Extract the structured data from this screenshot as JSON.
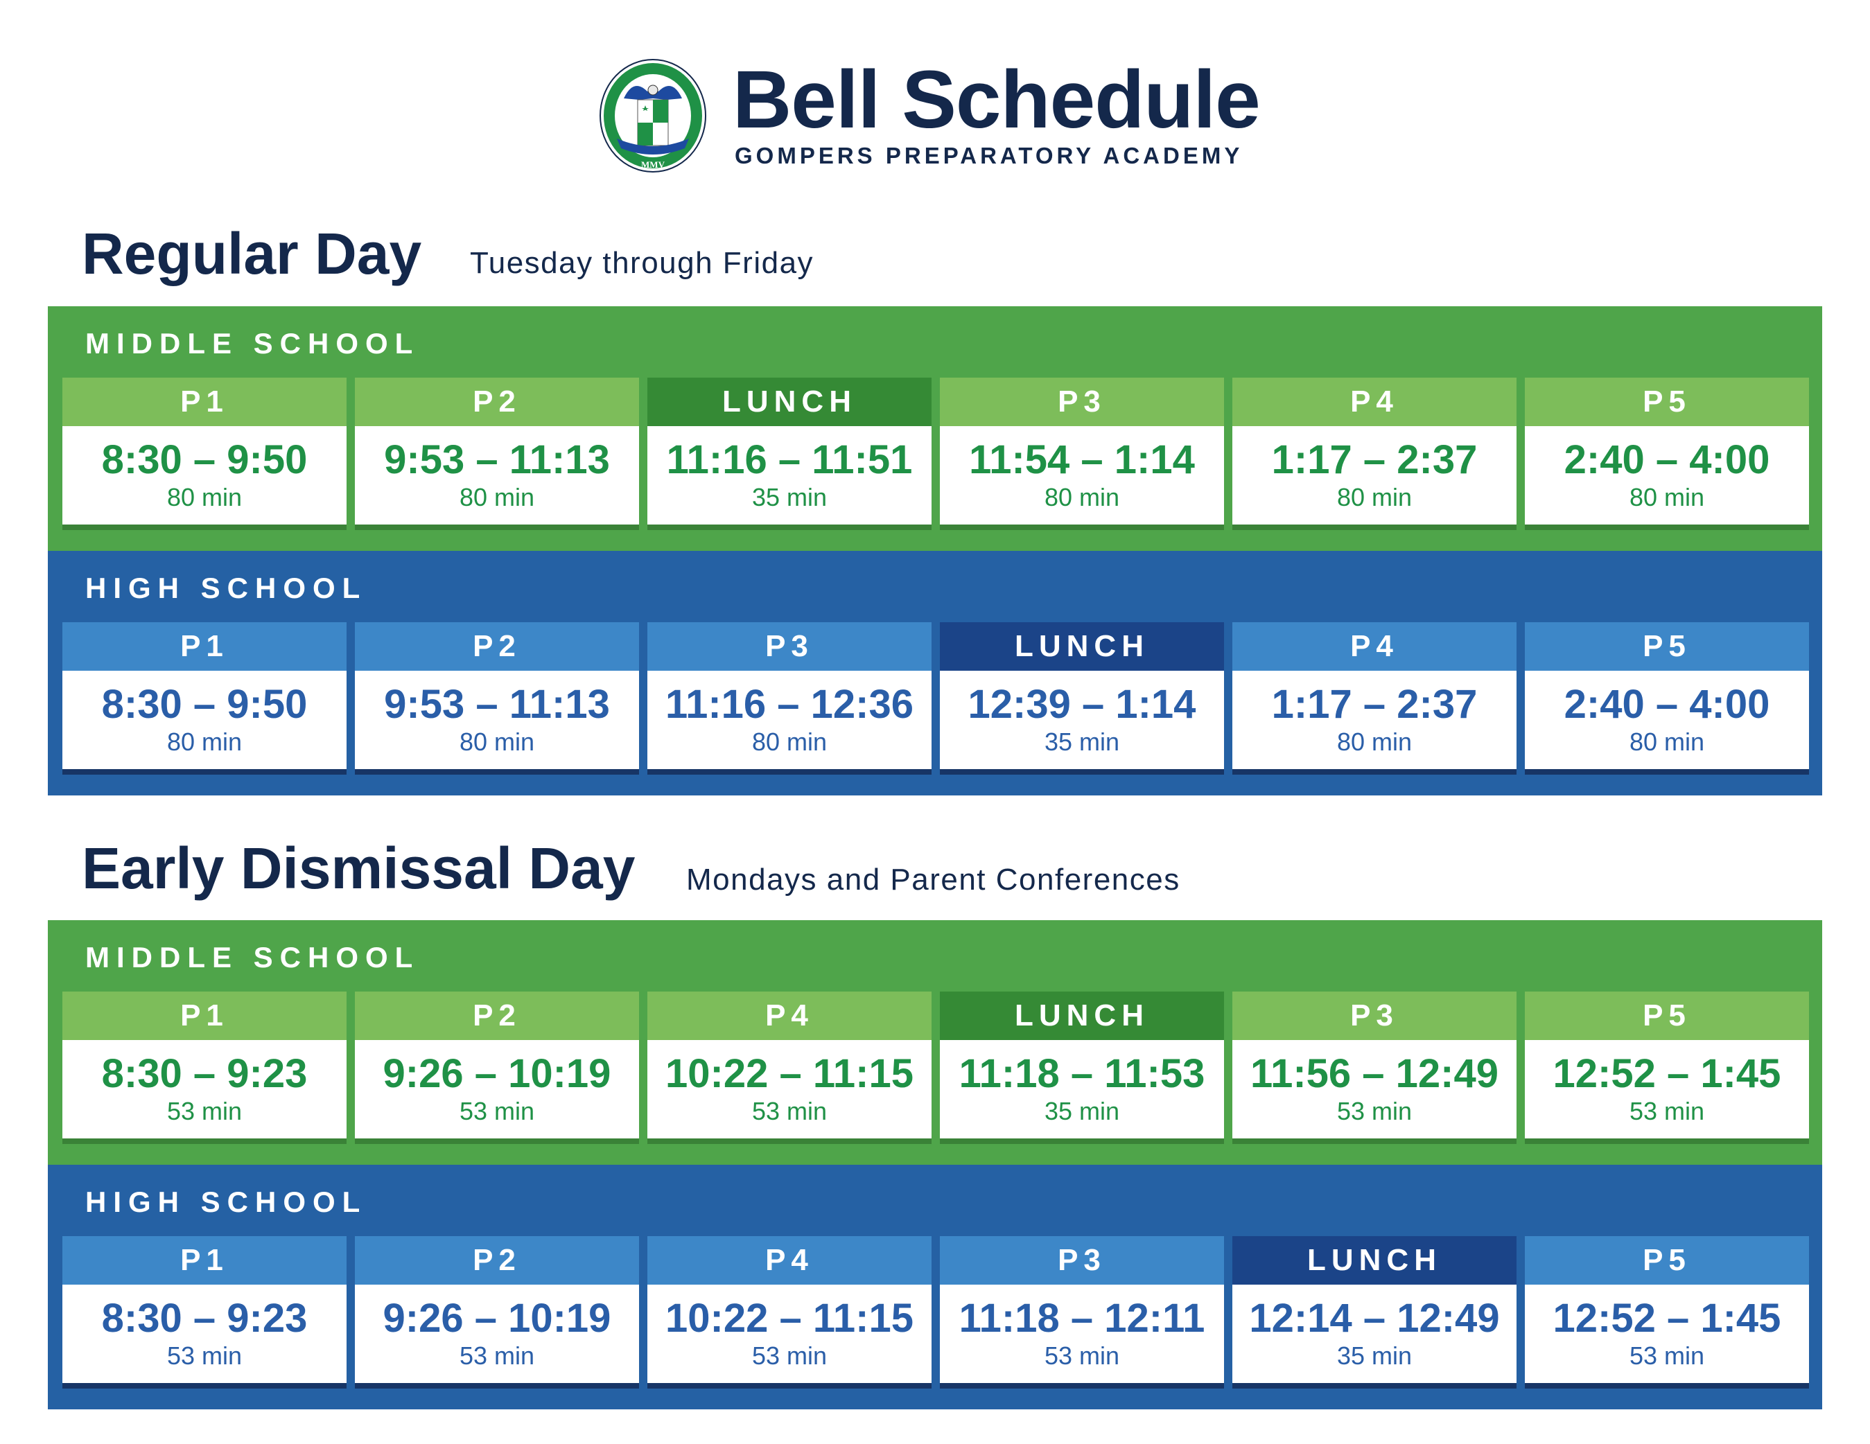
{
  "header": {
    "title": "Bell Schedule",
    "subtitle": "GOMPERS PREPARATORY ACADEMY",
    "logo_text": [
      "GOMPERS PREPARATORY ACADEMY",
      "MMV"
    ]
  },
  "colors": {
    "navy": "#14284b",
    "middle_school_green": "#4fa54a",
    "high_school_blue": "#2561a4",
    "lunch_green": "#358a35",
    "lunch_blue": "#1b4488"
  },
  "sections": [
    {
      "title": "Regular Day",
      "subtitle": "Tuesday through Friday",
      "groups": [
        {
          "label": "MIDDLE SCHOOL",
          "theme": "green",
          "periods": [
            {
              "name": "P1",
              "time": "8:30 – 9:50",
              "duration": "80 min"
            },
            {
              "name": "P2",
              "time": "9:53 – 11:13",
              "duration": "80 min"
            },
            {
              "name": "LUNCH",
              "time": "11:16 – 11:51",
              "duration": "35 min",
              "lunch": true
            },
            {
              "name": "P3",
              "time": "11:54 – 1:14",
              "duration": "80 min"
            },
            {
              "name": "P4",
              "time": "1:17 – 2:37",
              "duration": "80 min"
            },
            {
              "name": "P5",
              "time": "2:40 – 4:00",
              "duration": "80 min"
            }
          ]
        },
        {
          "label": "HIGH SCHOOL",
          "theme": "blue",
          "periods": [
            {
              "name": "P1",
              "time": "8:30 – 9:50",
              "duration": "80 min"
            },
            {
              "name": "P2",
              "time": "9:53 – 11:13",
              "duration": "80 min"
            },
            {
              "name": "P3",
              "time": "11:16 – 12:36",
              "duration": "80 min"
            },
            {
              "name": "LUNCH",
              "time": "12:39 – 1:14",
              "duration": "35 min",
              "lunch": true
            },
            {
              "name": "P4",
              "time": "1:17 – 2:37",
              "duration": "80 min"
            },
            {
              "name": "P5",
              "time": "2:40 – 4:00",
              "duration": "80 min"
            }
          ]
        }
      ]
    },
    {
      "title": "Early Dismissal Day",
      "subtitle": "Mondays and Parent Conferences",
      "groups": [
        {
          "label": "MIDDLE SCHOOL",
          "theme": "green",
          "periods": [
            {
              "name": "P1",
              "time": "8:30 – 9:23",
              "duration": "53 min"
            },
            {
              "name": "P2",
              "time": "9:26 – 10:19",
              "duration": "53 min"
            },
            {
              "name": "P4",
              "time": "10:22 – 11:15",
              "duration": "53 min"
            },
            {
              "name": "LUNCH",
              "time": "11:18 – 11:53",
              "duration": "35 min",
              "lunch": true
            },
            {
              "name": "P3",
              "time": "11:56 – 12:49",
              "duration": "53 min"
            },
            {
              "name": "P5",
              "time": "12:52 – 1:45",
              "duration": "53 min"
            }
          ]
        },
        {
          "label": "HIGH SCHOOL",
          "theme": "blue",
          "periods": [
            {
              "name": "P1",
              "time": "8:30 – 9:23",
              "duration": "53 min"
            },
            {
              "name": "P2",
              "time": "9:26 – 10:19",
              "duration": "53 min"
            },
            {
              "name": "P4",
              "time": "10:22 – 11:15",
              "duration": "53 min"
            },
            {
              "name": "P3",
              "time": "11:18 – 12:11",
              "duration": "53 min"
            },
            {
              "name": "LUNCH",
              "time": "12:14 – 12:49",
              "duration": "35 min",
              "lunch": true
            },
            {
              "name": "P5",
              "time": "12:52 – 1:45",
              "duration": "53 min"
            }
          ]
        }
      ]
    }
  ]
}
